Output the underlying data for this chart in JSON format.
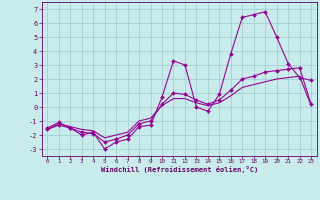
{
  "xlabel": "Windchill (Refroidissement éolien,°C)",
  "background_color": "#c8ecec",
  "grid_color": "#aad4d4",
  "line_color": "#990099",
  "x_hours": [
    0,
    1,
    2,
    3,
    4,
    5,
    6,
    7,
    8,
    9,
    10,
    11,
    12,
    13,
    14,
    15,
    16,
    17,
    18,
    19,
    20,
    21,
    22,
    23
  ],
  "line1_y": [
    -1.5,
    -1.1,
    -1.5,
    -2.0,
    -1.8,
    -3.0,
    -2.5,
    -2.3,
    -1.4,
    -1.3,
    0.7,
    3.3,
    3.0,
    0.0,
    -0.3,
    0.9,
    3.8,
    6.4,
    6.6,
    6.8,
    5.0,
    3.1,
    2.1,
    1.9
  ],
  "line2_y": [
    -1.6,
    -1.3,
    -1.5,
    -1.8,
    -1.9,
    -2.5,
    -2.3,
    -2.0,
    -1.2,
    -1.0,
    0.2,
    1.0,
    0.9,
    0.5,
    0.2,
    0.5,
    1.2,
    2.0,
    2.2,
    2.5,
    2.6,
    2.7,
    2.8,
    0.2
  ],
  "line3_y": [
    -1.6,
    -1.2,
    -1.4,
    -1.6,
    -1.7,
    -2.2,
    -2.0,
    -1.8,
    -1.0,
    -0.8,
    0.1,
    0.6,
    0.6,
    0.3,
    0.1,
    0.3,
    0.8,
    1.4,
    1.6,
    1.8,
    2.0,
    2.1,
    2.2,
    0.1
  ],
  "ylim": [
    -3.5,
    7.5
  ],
  "yticks": [
    -3,
    -2,
    -1,
    0,
    1,
    2,
    3,
    4,
    5,
    6,
    7
  ],
  "xlim": [
    -0.5,
    23.5
  ],
  "xticks": [
    0,
    1,
    2,
    3,
    4,
    5,
    6,
    7,
    8,
    9,
    10,
    11,
    12,
    13,
    14,
    15,
    16,
    17,
    18,
    19,
    20,
    21,
    22,
    23
  ]
}
